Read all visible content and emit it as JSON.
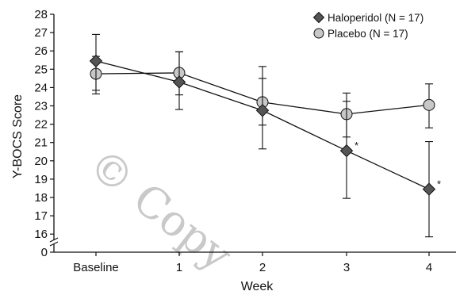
{
  "chart_data": {
    "type": "line",
    "title": "",
    "xlabel": "Week",
    "ylabel": "Y-BOCS Score",
    "categories": [
      "Baseline",
      "1",
      "2",
      "3",
      "4"
    ],
    "y_ticks": [
      "28",
      "27",
      "26",
      "25",
      "24",
      "23",
      "22",
      "21",
      "20",
      "19",
      "18",
      "17",
      "16",
      "0"
    ],
    "ylim": [
      16,
      28
    ],
    "axis_break": true,
    "legend_position": "top-right",
    "grid": false,
    "series": [
      {
        "name": "Haloperidol (N = 17)",
        "marker": "diamond",
        "color": "#555555",
        "values": [
          25.45,
          24.3,
          22.75,
          20.55,
          18.45
        ],
        "error_low": [
          23.65,
          22.8,
          20.65,
          17.95,
          15.85
        ],
        "error_high": [
          26.9,
          25.95,
          24.5,
          23.25,
          21.05
        ],
        "significance": [
          null,
          null,
          null,
          "*",
          "*"
        ]
      },
      {
        "name": "Placebo (N = 17)",
        "marker": "circle",
        "color": "#c8c8c8",
        "values": [
          24.75,
          24.8,
          23.2,
          22.55,
          23.05
        ],
        "error_low": [
          23.85,
          23.6,
          21.95,
          21.3,
          21.8
        ],
        "error_high": [
          25.7,
          25.95,
          25.15,
          23.7,
          24.2
        ],
        "significance": [
          null,
          null,
          null,
          null,
          null
        ]
      }
    ]
  }
}
